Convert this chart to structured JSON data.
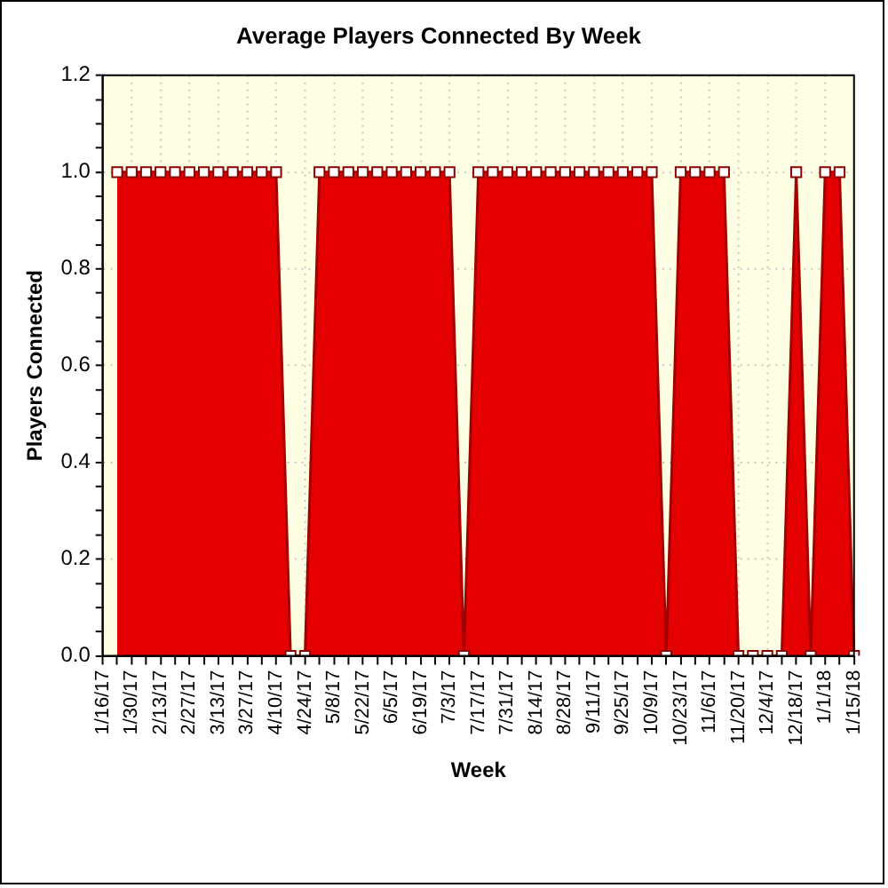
{
  "chart_data": {
    "type": "area",
    "title": "Average Players Connected By Week",
    "xlabel": "Week",
    "ylabel": "Players Connected",
    "categories": [
      "1/16/17",
      null,
      "1/30/17",
      null,
      "2/13/17",
      null,
      "2/27/17",
      null,
      "3/13/17",
      null,
      "3/27/17",
      null,
      "4/10/17",
      null,
      "4/24/17",
      null,
      "5/8/17",
      null,
      "5/22/17",
      null,
      "6/5/17",
      null,
      "6/19/17",
      null,
      "7/3/17",
      null,
      "7/17/17",
      null,
      "7/31/17",
      null,
      "8/14/17",
      null,
      "8/28/17",
      null,
      "9/11/17",
      null,
      "9/25/17",
      null,
      "10/9/17",
      null,
      "10/23/17",
      null,
      "11/6/17",
      null,
      "11/20/17",
      null,
      "12/4/17",
      null,
      "12/18/17",
      null,
      "1/1/18",
      null,
      "1/15/18"
    ],
    "series": [
      {
        "color": "#e40000",
        "values": [
          null,
          1,
          1,
          1,
          1,
          1,
          1,
          1,
          1,
          1,
          1,
          1,
          1,
          0,
          0,
          1,
          1,
          1,
          1,
          1,
          1,
          1,
          1,
          1,
          1,
          0,
          1,
          1,
          1,
          1,
          1,
          1,
          1,
          1,
          1,
          1,
          1,
          1,
          1,
          0,
          1,
          1,
          1,
          1,
          0,
          0,
          0,
          0,
          1,
          0,
          1,
          1,
          0
        ]
      }
    ],
    "ylim": [
      0,
      1.2
    ],
    "yticks": [
      {
        "value": 0,
        "label": "0.0"
      },
      {
        "value": 0.05,
        "label": null
      },
      {
        "value": 0.1,
        "label": null
      },
      {
        "value": 0.15,
        "label": null
      },
      0.2,
      {
        "value": 0.25,
        "label": null
      },
      {
        "value": 0.3,
        "label": null
      },
      {
        "value": 0.35,
        "label": null
      },
      0.4,
      {
        "value": 0.45,
        "label": null
      },
      {
        "value": 0.5,
        "label": null
      },
      {
        "value": 0.55,
        "label": null
      },
      0.6,
      {
        "value": 0.65,
        "label": null
      },
      {
        "value": 0.7,
        "label": null
      },
      {
        "value": 0.75,
        "label": null
      },
      0.8,
      {
        "value": 0.85,
        "label": null
      },
      {
        "value": 0.9,
        "label": null
      },
      {
        "value": 0.95,
        "label": null
      },
      {
        "value": 1,
        "label": "1.0"
      },
      {
        "value": 1.05,
        "label": null
      },
      {
        "value": 1.1,
        "label": null
      },
      {
        "value": 1.15,
        "label": null
      },
      1.2
    ],
    "grid": true,
    "marker": "square"
  }
}
